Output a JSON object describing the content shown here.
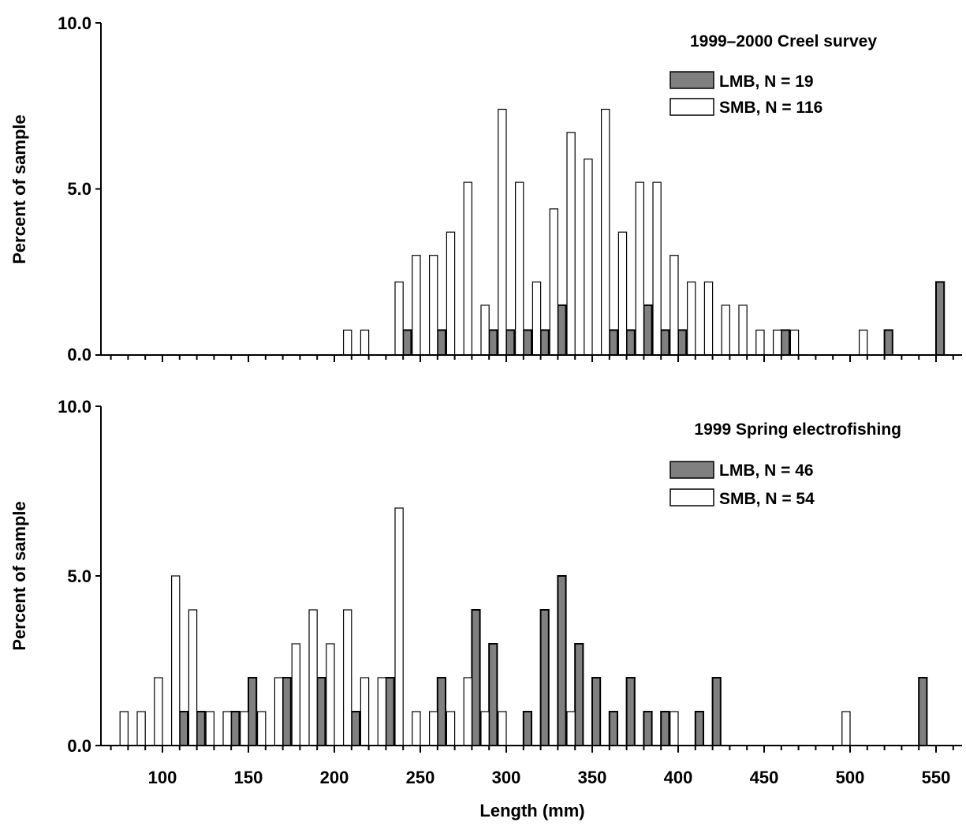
{
  "figure": {
    "xlabel": "Length (mm)"
  },
  "colors": {
    "lmb_fill": "#808080",
    "smb_fill": "#ffffff",
    "stroke": "#000000"
  },
  "chart_data": [
    {
      "type": "bar",
      "title": "1999–2000 Creel survey",
      "xlabel": "Length (mm)",
      "ylabel": "Percent of sample",
      "ylim": [
        0,
        10
      ],
      "xlim": [
        80,
        560
      ],
      "y_ticks": [
        "0.0",
        "5.0",
        "10.0"
      ],
      "x_ticks": [],
      "legend_position": "top-right",
      "series": [
        {
          "name": "LMB, N = 19",
          "fill": "#808080",
          "x": [
            240,
            260,
            290,
            300,
            310,
            320,
            330,
            360,
            370,
            380,
            390,
            400,
            460,
            520,
            550
          ],
          "values": [
            0.75,
            0.75,
            0.75,
            0.75,
            0.75,
            0.75,
            1.5,
            0.75,
            0.75,
            1.5,
            0.75,
            0.75,
            0.75,
            0.75,
            2.2
          ]
        },
        {
          "name": "SMB, N = 116",
          "fill": "#ffffff",
          "x": [
            210,
            220,
            240,
            250,
            260,
            270,
            280,
            290,
            300,
            310,
            320,
            330,
            340,
            350,
            360,
            370,
            380,
            390,
            400,
            410,
            420,
            430,
            440,
            450,
            460,
            470,
            510
          ],
          "values": [
            0.75,
            0.75,
            2.2,
            3.0,
            3.0,
            3.7,
            5.2,
            1.5,
            7.4,
            5.2,
            2.2,
            4.4,
            6.7,
            5.9,
            7.4,
            3.7,
            5.2,
            5.2,
            3.0,
            2.2,
            2.2,
            1.5,
            1.5,
            0.75,
            0.75,
            0.75,
            0.75
          ]
        }
      ]
    },
    {
      "type": "bar",
      "title": "1999 Spring electrofishing",
      "xlabel": "Length (mm)",
      "ylabel": "Percent of sample",
      "ylim": [
        0,
        10
      ],
      "xlim": [
        60,
        560
      ],
      "y_ticks": [
        "0.0",
        "5.0",
        "10.0"
      ],
      "x_ticks": [
        "100",
        "150",
        "200",
        "250",
        "300",
        "350",
        "400",
        "450",
        "500",
        "550"
      ],
      "legend_position": "top-right",
      "series": [
        {
          "name": "LMB, N = 46",
          "fill": "#808080",
          "x": [
            110,
            120,
            140,
            150,
            170,
            190,
            210,
            230,
            260,
            280,
            290,
            310,
            320,
            330,
            340,
            350,
            360,
            370,
            380,
            390,
            410,
            420,
            540
          ],
          "values": [
            1,
            1,
            1,
            2,
            2,
            2,
            1,
            2,
            2,
            4,
            3,
            1,
            4,
            5,
            3,
            2,
            1,
            2,
            1,
            1,
            1,
            2,
            2
          ]
        },
        {
          "name": "SMB, N = 54",
          "fill": "#ffffff",
          "x": [
            80,
            90,
            100,
            110,
            120,
            130,
            140,
            150,
            160,
            170,
            180,
            190,
            200,
            210,
            220,
            230,
            240,
            250,
            260,
            270,
            280,
            290,
            300,
            340,
            400,
            500
          ],
          "values": [
            1,
            1,
            2,
            5,
            4,
            1,
            1,
            1,
            1,
            2,
            3,
            4,
            3,
            4,
            2,
            2,
            7,
            1,
            1,
            1,
            2,
            1,
            1,
            1,
            1,
            1
          ]
        }
      ]
    }
  ]
}
